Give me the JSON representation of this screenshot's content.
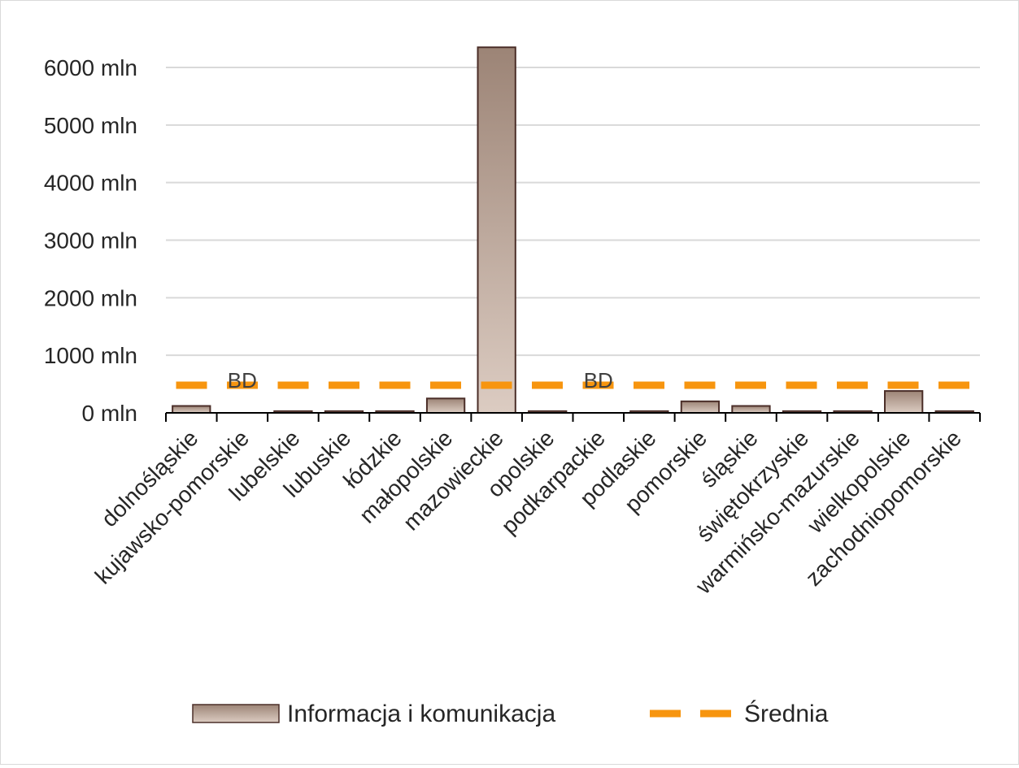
{
  "chart_data": {
    "type": "bar",
    "categories": [
      "dolnośląskie",
      "kujawsko-pomorskie",
      "lubelskie",
      "lubuskie",
      "łódzkie",
      "małopolskie",
      "mazowieckie",
      "opolskie",
      "podkarpackie",
      "podlaskie",
      "pomorskie",
      "śląskie",
      "świętokrzyskie",
      "warmińsko-mazurskie",
      "wielkopolskie",
      "zachodniopomorskie"
    ],
    "series": [
      {
        "name": "Informacja i komunikacja",
        "kind": "bar",
        "values": [
          120,
          null,
          30,
          30,
          30,
          250,
          6350,
          30,
          null,
          30,
          200,
          120,
          30,
          30,
          380,
          30
        ]
      },
      {
        "name": "Średnia",
        "kind": "line",
        "style": "dashed",
        "value": 480
      }
    ],
    "missing_label": "BD",
    "ylim": [
      0,
      6000
    ],
    "y_ticks": [
      0,
      1000,
      2000,
      3000,
      4000,
      5000,
      6000
    ],
    "y_tick_labels": [
      "0 mln",
      "1000 mln",
      "2000 mln",
      "3000 mln",
      "4000 mln",
      "5000 mln",
      "6000 mln"
    ],
    "grid": true,
    "legend_position": "bottom",
    "colors": {
      "bar_top": "#9c8476",
      "bar_bottom": "#dcccc2",
      "bar_stroke": "#4b2e28",
      "average": "#f7950f",
      "grid": "#d9d9d9",
      "axis": "#000000"
    }
  }
}
